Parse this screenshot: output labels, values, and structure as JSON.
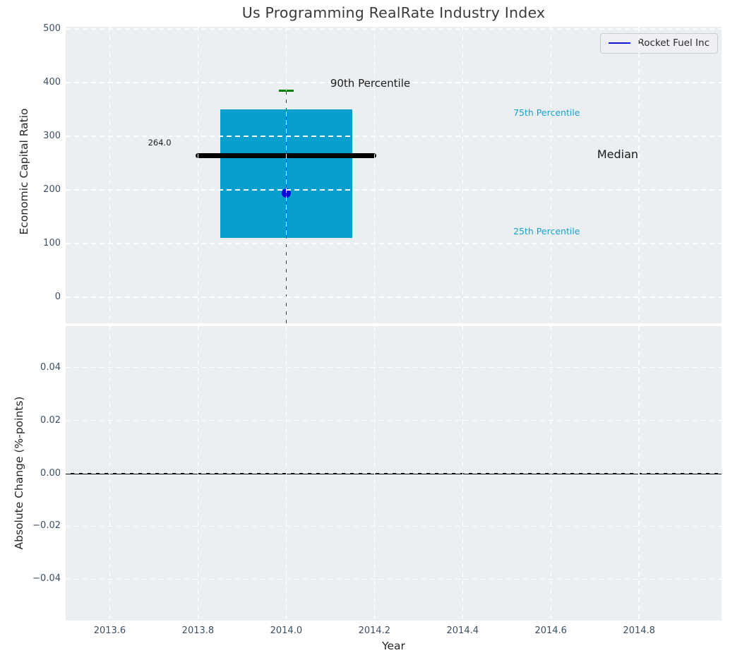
{
  "title": "Us Programming RealRate Industry Index",
  "legend": {
    "label": "Rocket Fuel Inc"
  },
  "colors": {
    "axes_bg": "#eceff1",
    "grid": "#ffffff",
    "box_fill": "#089fce",
    "median_line": "#000000",
    "percentile_cap": "#008000",
    "company_marker": "#0909dd",
    "legend_line": "#1414dd",
    "tick_label": "#3d4f63",
    "axis_label": "#262626",
    "title_text": "#3a3a3a",
    "percentile_text": "#1b9fce",
    "whisker": "#3f3f3f",
    "zero_line": "#000000"
  },
  "chart_data": [
    {
      "type": "boxplot",
      "panel": "top",
      "title": "Us Programming RealRate Industry Index",
      "ylabel": "Economic Capital Ratio",
      "ylim": [
        -48.7,
        504
      ],
      "yticks": [
        500,
        400,
        300,
        200,
        100,
        0
      ],
      "ytick_labels": [
        "500",
        "400",
        "300",
        "200",
        "100",
        "0"
      ],
      "xlim": [
        2013.5,
        2014.987
      ],
      "xticks": [
        2013.6,
        2013.8,
        2014.0,
        2014.2,
        2014.4,
        2014.6,
        2014.8
      ],
      "grid": true,
      "legend_position": "upper right",
      "box": {
        "x": 2014.0,
        "box_width": 0.3,
        "p25": 110,
        "p75": 350,
        "median": 264,
        "p90": 385,
        "median_line_width": 0.41,
        "cap_width": 0.034,
        "whisker_low_clip": -48.7
      },
      "company_point": {
        "name": "Rocket Fuel Inc",
        "x": 2014.0,
        "y": 193.5
      },
      "annotations": [
        {
          "text": "90th Percentile",
          "x": 2014.1,
          "y": 397,
          "color": "#1a1a1a",
          "size": 15,
          "align": "left"
        },
        {
          "text": "75th Percentile",
          "x": 2014.515,
          "y": 342,
          "color": "#1b9fce",
          "size": 12.5,
          "align": "left"
        },
        {
          "text": "Median",
          "x": 2014.705,
          "y": 265,
          "color": "#1a1a1a",
          "size": 16,
          "align": "left"
        },
        {
          "text": "25th Percentile",
          "x": 2014.515,
          "y": 121,
          "color": "#1b9fce",
          "size": 12.5,
          "align": "left"
        },
        {
          "text": "264.0",
          "x": 2013.713,
          "y": 287,
          "color": "#1a1a1a",
          "size": 11.5,
          "align": "center"
        }
      ]
    },
    {
      "type": "line",
      "panel": "bottom",
      "xlabel": "Year",
      "ylabel": "Absolute Change (%-points)",
      "ylim": [
        -0.0557,
        0.0557
      ],
      "yticks": [
        0.04,
        0.02,
        0,
        -0.02,
        -0.04
      ],
      "ytick_labels": [
        "0.04",
        "0.02",
        "0.00",
        "−0.02",
        "−0.04"
      ],
      "xlim": [
        2013.5,
        2014.987
      ],
      "xticks": [
        2013.6,
        2013.8,
        2014.0,
        2014.2,
        2014.4,
        2014.6,
        2014.8
      ],
      "xtick_labels": [
        "2013.6",
        "2013.8",
        "2014.0",
        "2014.2",
        "2014.4",
        "2014.6",
        "2014.8"
      ],
      "grid": true,
      "zero_line_y": 0.0,
      "series": [
        {
          "name": "Rocket Fuel Inc",
          "points": []
        }
      ]
    }
  ]
}
